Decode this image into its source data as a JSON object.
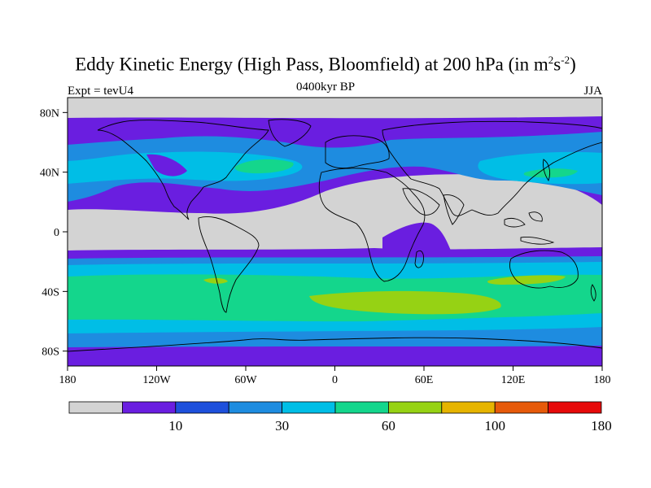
{
  "title": {
    "main": "Eddy Kinetic Energy (High Pass, Bloomfield) at 200 hPa (in m",
    "sup1": "2",
    "mid": "s",
    "sup2": "-2",
    "end": ")"
  },
  "subtitle": "0400kyr BP",
  "left_label": "Expt = tevU4",
  "right_label": "JJA",
  "map": {
    "lat_range": [
      -90,
      90
    ],
    "lon_range": [
      -180,
      180
    ],
    "lat_ticks": [
      {
        "value": 80,
        "label": "80N"
      },
      {
        "value": 40,
        "label": "40N"
      },
      {
        "value": 0,
        "label": "0"
      },
      {
        "value": -40,
        "label": "40S"
      },
      {
        "value": -80,
        "label": "80S"
      }
    ],
    "lon_ticks": [
      {
        "value": -180,
        "label": "180"
      },
      {
        "value": -120,
        "label": "120W"
      },
      {
        "value": -60,
        "label": "60W"
      },
      {
        "value": 0,
        "label": "0"
      },
      {
        "value": 60,
        "label": "60E"
      },
      {
        "value": 120,
        "label": "120E"
      },
      {
        "value": 180,
        "label": "180"
      }
    ]
  },
  "colorbar": {
    "colors": [
      "#d3d3d3",
      "#6a1ee0",
      "#1e50dc",
      "#1e8ce0",
      "#00bee6",
      "#14d68c",
      "#96d214",
      "#e6b400",
      "#e65a0a",
      "#e60a0a"
    ],
    "labels": [
      {
        "after_box": 1,
        "text": "10"
      },
      {
        "after_box": 3,
        "text": "30"
      },
      {
        "after_box": 5,
        "text": "60"
      },
      {
        "after_box": 7,
        "text": "100"
      },
      {
        "after_box": 9,
        "text": "180"
      }
    ]
  }
}
